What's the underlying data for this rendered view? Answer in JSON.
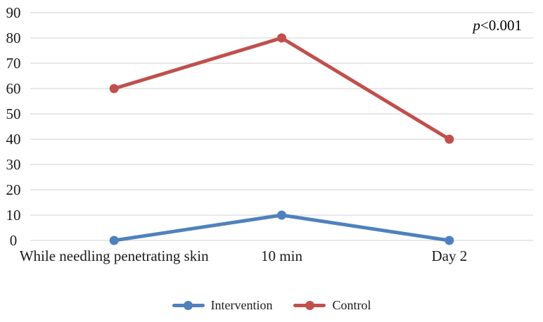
{
  "chart_data": {
    "type": "line",
    "categories": [
      "While needling penetrating skin",
      "10 min",
      "Day 2"
    ],
    "series": [
      {
        "name": "Intervention",
        "values": [
          0,
          10,
          0
        ],
        "color": "#4F81BD"
      },
      {
        "name": "Control",
        "values": [
          60,
          80,
          40
        ],
        "color": "#C0504D"
      }
    ],
    "ylim": [
      0,
      90
    ],
    "yticks": [
      90,
      80,
      70,
      60,
      50,
      40,
      30,
      20,
      10,
      0
    ],
    "grid": "horizontal",
    "legend_position": "bottom",
    "annotation": {
      "var": "p",
      "rest": "<0.001"
    }
  },
  "colors": {
    "gridline": "#D9D9D9",
    "text": "#1a1a1a"
  }
}
